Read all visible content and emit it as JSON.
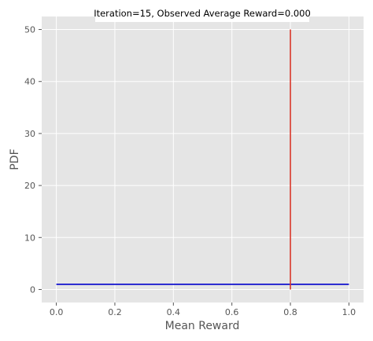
{
  "chart_data": {
    "type": "line",
    "title": "Iteration=15, Observed Average Reward=0.000",
    "xlabel": "Mean Reward",
    "ylabel": "PDF",
    "xlim": [
      -0.05,
      1.05
    ],
    "ylim": [
      -2.5,
      52.5
    ],
    "x_ticks": [
      0.0,
      0.2,
      0.4,
      0.6,
      0.8,
      1.0
    ],
    "x_tick_labels": [
      "0.0",
      "0.2",
      "0.4",
      "0.6",
      "0.8",
      "1.0"
    ],
    "y_ticks": [
      0,
      10,
      20,
      30,
      40,
      50
    ],
    "y_tick_labels": [
      "0",
      "10",
      "20",
      "30",
      "40",
      "50"
    ],
    "grid": true,
    "series": [
      {
        "type": "line",
        "color": "#0000cc",
        "x": [
          0.0,
          1.0
        ],
        "y": [
          1,
          1
        ]
      },
      {
        "type": "vline",
        "color": "#d9372a",
        "x": [
          0.8,
          0.8
        ],
        "y": [
          0,
          50
        ]
      }
    ],
    "colors": {
      "panel_bg": "#e5e5e5",
      "grid": "#ffffff",
      "text": "#555555"
    }
  }
}
